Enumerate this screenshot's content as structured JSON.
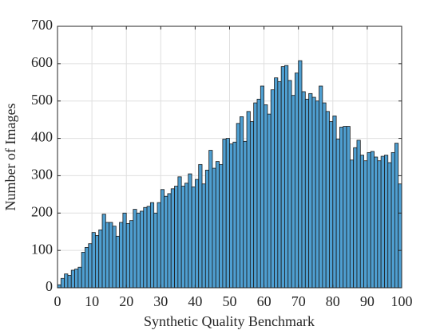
{
  "chart_data": {
    "type": "histogram",
    "xlabel": "Synthetic Quality Benchmark",
    "ylabel": "Number of Images",
    "color": "#4f9fd1",
    "edgecolor": "#1a1a1a",
    "grid": true,
    "bins": [
      0,
      1,
      2,
      3,
      4,
      5,
      6,
      7,
      8,
      9,
      10,
      11,
      12,
      13,
      14,
      15,
      16,
      17,
      18,
      19,
      20,
      21,
      22,
      23,
      24,
      25,
      26,
      27,
      28,
      29,
      30,
      31,
      32,
      33,
      34,
      35,
      36,
      37,
      38,
      39,
      40,
      41,
      42,
      43,
      44,
      45,
      46,
      47,
      48,
      49,
      50,
      51,
      52,
      53,
      54,
      55,
      56,
      57,
      58,
      59,
      60,
      61,
      62,
      63,
      64,
      65,
      66,
      67,
      68,
      69,
      70,
      71,
      72,
      73,
      74,
      75,
      76,
      77,
      78,
      79,
      80,
      81,
      82,
      83,
      84,
      85,
      86,
      87,
      88,
      89,
      90,
      91,
      92,
      93,
      94,
      95,
      96,
      97,
      98,
      99,
      100
    ],
    "counts": [
      8,
      25,
      37,
      33,
      47,
      50,
      55,
      95,
      108,
      118,
      148,
      140,
      155,
      197,
      175,
      175,
      165,
      138,
      175,
      200,
      172,
      180,
      210,
      200,
      205,
      215,
      218,
      228,
      200,
      228,
      263,
      245,
      252,
      265,
      272,
      297,
      272,
      280,
      305,
      270,
      290,
      330,
      278,
      315,
      368,
      320,
      338,
      330,
      398,
      400,
      385,
      390,
      440,
      458,
      392,
      472,
      445,
      495,
      505,
      540,
      490,
      465,
      530,
      562,
      552,
      592,
      595,
      555,
      515,
      575,
      608,
      525,
      505,
      520,
      510,
      500,
      540,
      495,
      472,
      445,
      460,
      398,
      430,
      432,
      432,
      342,
      375,
      395,
      355,
      340,
      362,
      365,
      350,
      340,
      352,
      355,
      335,
      362,
      387,
      278
    ],
    "xlim": [
      0,
      100
    ],
    "xticks": [
      0,
      10,
      20,
      30,
      40,
      50,
      60,
      70,
      80,
      90,
      100
    ],
    "ylim": [
      0,
      700
    ],
    "yticks": [
      0,
      100,
      200,
      300,
      400,
      500,
      600,
      700
    ]
  }
}
